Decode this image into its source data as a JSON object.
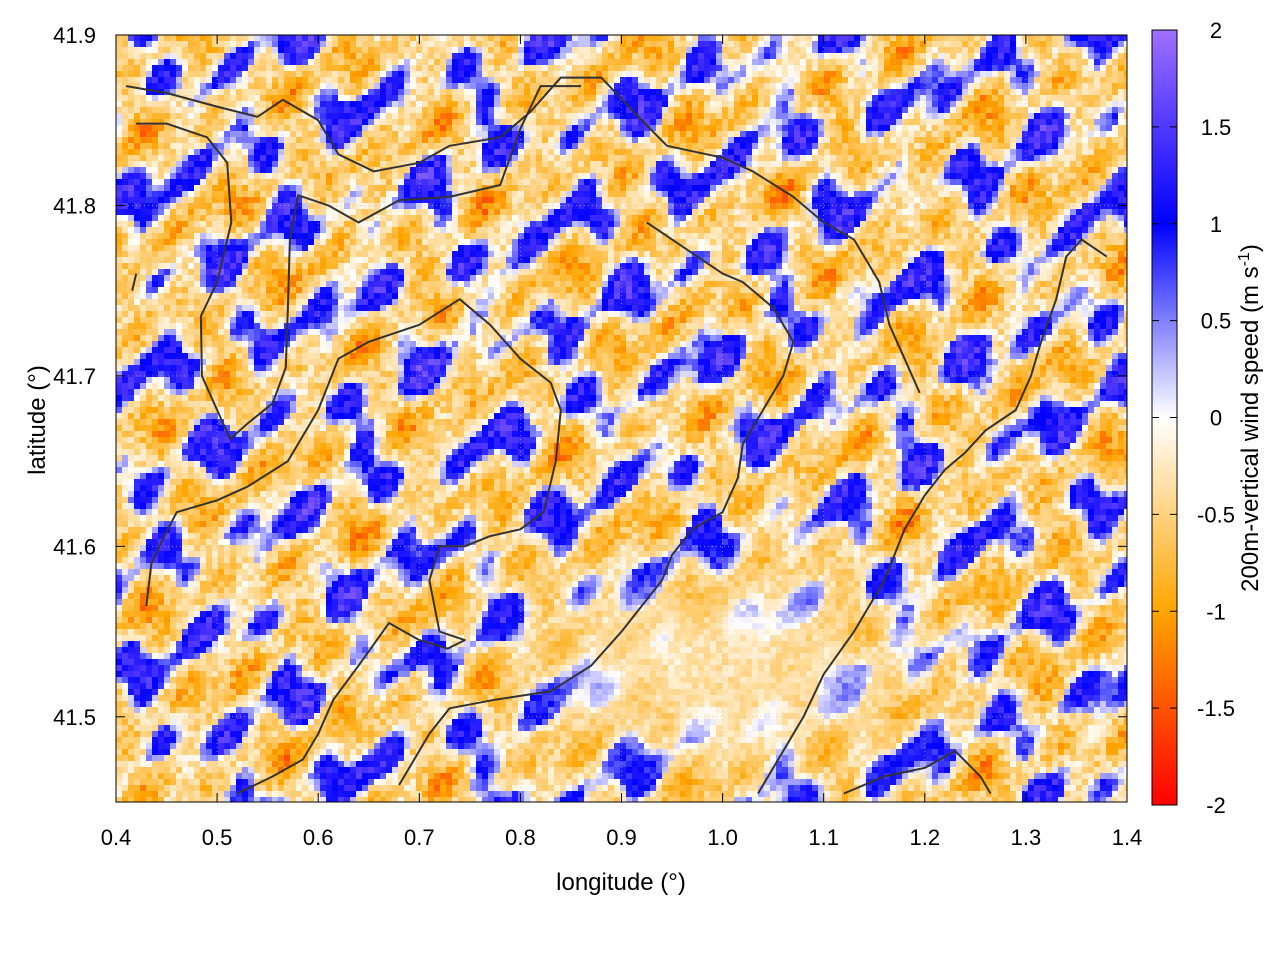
{
  "chart_data": {
    "type": "heatmap",
    "title": "",
    "xlabel": "longitude (°)",
    "ylabel": "latitude (°)",
    "xlim": [
      0.4,
      1.4
    ],
    "ylim": [
      41.45,
      41.9
    ],
    "xticks": [
      0.4,
      0.5,
      0.6,
      0.7,
      0.8,
      0.9,
      1.0,
      1.1,
      1.2,
      1.3,
      1.4
    ],
    "xtick_labels": [
      "0.4",
      "0.5",
      "0.6",
      "0.7",
      "0.8",
      "0.9",
      "1.0",
      "1.1",
      "1.2",
      "1.3",
      "1.4"
    ],
    "yticks": [
      41.5,
      41.6,
      41.7,
      41.8,
      41.9
    ],
    "ytick_labels": [
      "41.5",
      "41.6",
      "41.7",
      "41.8",
      "41.9"
    ],
    "grid": true,
    "colorbar": {
      "label_main": "200m-vertical wind speed (m s",
      "label_sup": "-1",
      "label_end": ")",
      "range": [
        -2,
        2
      ],
      "ticks": [
        -2,
        -1.5,
        -1,
        -0.5,
        0,
        0.5,
        1,
        1.5,
        2
      ],
      "tick_labels": [
        "-2",
        "-1.5",
        "-1",
        "-0.5",
        "0",
        "0.5",
        "1",
        "1.5",
        "2"
      ],
      "stops": [
        {
          "value": -2,
          "color": "#ff0000"
        },
        {
          "value": -1,
          "color": "#ffa500"
        },
        {
          "value": 0,
          "color": "#ffffff"
        },
        {
          "value": 1,
          "color": "#0000ff"
        },
        {
          "value": 2,
          "color": "#a070ff"
        }
      ]
    },
    "field_description_values": {
      "calm_region_center": [
        1.0,
        41.53
      ],
      "calm_value": -0.35
    },
    "outline_lines": [
      [
        [
          0.41,
          41.87
        ],
        [
          0.45,
          41.866
        ],
        [
          0.5,
          41.858
        ],
        [
          0.54,
          41.852
        ],
        [
          0.565,
          41.862
        ],
        [
          0.6,
          41.85
        ],
        [
          0.62,
          41.83
        ],
        [
          0.655,
          41.82
        ],
        [
          0.7,
          41.825
        ],
        [
          0.73,
          41.835
        ],
        [
          0.78,
          41.84
        ],
        [
          0.81,
          41.855
        ],
        [
          0.84,
          41.875
        ],
        [
          0.88,
          41.875
        ],
        [
          0.92,
          41.85
        ],
        [
          0.945,
          41.835
        ],
        [
          1.0,
          41.828
        ],
        [
          1.03,
          41.82
        ],
        [
          1.07,
          41.805
        ],
        [
          1.1,
          41.79
        ],
        [
          1.13,
          41.78
        ],
        [
          1.155,
          41.755
        ],
        [
          1.165,
          41.73
        ],
        [
          1.18,
          41.71
        ],
        [
          1.195,
          41.69
        ]
      ],
      [
        [
          0.42,
          41.848
        ],
        [
          0.45,
          41.848
        ],
        [
          0.49,
          41.84
        ],
        [
          0.51,
          41.825
        ],
        [
          0.514,
          41.79
        ],
        [
          0.5,
          41.755
        ],
        [
          0.484,
          41.735
        ],
        [
          0.485,
          41.7
        ],
        [
          0.5,
          41.68
        ],
        [
          0.513,
          41.663
        ],
        [
          0.53,
          41.672
        ],
        [
          0.555,
          41.684
        ],
        [
          0.568,
          41.705
        ],
        [
          0.57,
          41.74
        ],
        [
          0.572,
          41.78
        ],
        [
          0.58,
          41.806
        ],
        [
          0.61,
          41.8
        ],
        [
          0.64,
          41.79
        ],
        [
          0.68,
          41.803
        ],
        [
          0.73,
          41.805
        ],
        [
          0.78,
          41.812
        ],
        [
          0.8,
          41.845
        ],
        [
          0.82,
          41.87
        ],
        [
          0.86,
          41.87
        ]
      ],
      [
        [
          0.42,
          41.76
        ],
        [
          0.416,
          41.75
        ]
      ],
      [
        [
          0.43,
          41.565
        ],
        [
          0.435,
          41.59
        ],
        [
          0.447,
          41.605
        ],
        [
          0.46,
          41.62
        ],
        [
          0.5,
          41.627
        ],
        [
          0.53,
          41.635
        ],
        [
          0.57,
          41.65
        ],
        [
          0.6,
          41.68
        ],
        [
          0.62,
          41.71
        ],
        [
          0.65,
          41.72
        ],
        [
          0.7,
          41.73
        ],
        [
          0.74,
          41.745
        ],
        [
          0.77,
          41.73
        ],
        [
          0.8,
          41.71
        ],
        [
          0.83,
          41.696
        ],
        [
          0.84,
          41.68
        ],
        [
          0.835,
          41.65
        ],
        [
          0.823,
          41.62
        ],
        [
          0.8,
          41.61
        ],
        [
          0.77,
          41.606
        ],
        [
          0.745,
          41.6
        ],
        [
          0.72,
          41.6
        ],
        [
          0.71,
          41.58
        ],
        [
          0.72,
          41.55
        ],
        [
          0.745,
          41.545
        ],
        [
          0.728,
          41.54
        ],
        [
          0.7,
          41.545
        ],
        [
          0.67,
          41.555
        ],
        [
          0.64,
          41.53
        ],
        [
          0.615,
          41.51
        ],
        [
          0.6,
          41.49
        ],
        [
          0.585,
          41.475
        ],
        [
          0.555,
          41.465
        ],
        [
          0.52,
          41.455
        ]
      ],
      [
        [
          0.68,
          41.46
        ],
        [
          0.71,
          41.49
        ],
        [
          0.73,
          41.505
        ],
        [
          0.775,
          41.51
        ],
        [
          0.83,
          41.515
        ],
        [
          0.87,
          41.53
        ],
        [
          0.9,
          41.55
        ],
        [
          0.92,
          41.565
        ],
        [
          0.94,
          41.58
        ],
        [
          0.95,
          41.595
        ],
        [
          0.97,
          41.61
        ],
        [
          1.0,
          41.62
        ],
        [
          1.015,
          41.64
        ],
        [
          1.02,
          41.66
        ],
        [
          1.04,
          41.68
        ],
        [
          1.06,
          41.7
        ],
        [
          1.07,
          41.72
        ],
        [
          1.05,
          41.74
        ],
        [
          1.02,
          41.755
        ],
        [
          1.0,
          41.76
        ],
        [
          0.97,
          41.772
        ],
        [
          0.945,
          41.782
        ],
        [
          0.925,
          41.79
        ]
      ],
      [
        [
          1.035,
          41.455
        ],
        [
          1.06,
          41.48
        ],
        [
          1.08,
          41.5
        ],
        [
          1.1,
          41.525
        ],
        [
          1.13,
          41.55
        ],
        [
          1.16,
          41.58
        ],
        [
          1.18,
          41.61
        ],
        [
          1.2,
          41.63
        ],
        [
          1.22,
          41.645
        ],
        [
          1.24,
          41.655
        ],
        [
          1.26,
          41.668
        ],
        [
          1.29,
          41.68
        ],
        [
          1.305,
          41.7
        ],
        [
          1.315,
          41.72
        ],
        [
          1.33,
          41.745
        ],
        [
          1.34,
          41.77
        ],
        [
          1.355,
          41.78
        ],
        [
          1.38,
          41.77
        ]
      ],
      [
        [
          1.12,
          41.455
        ],
        [
          1.16,
          41.465
        ],
        [
          1.2,
          41.47
        ],
        [
          1.23,
          41.48
        ],
        [
          1.255,
          41.465
        ],
        [
          1.265,
          41.455
        ]
      ]
    ]
  }
}
